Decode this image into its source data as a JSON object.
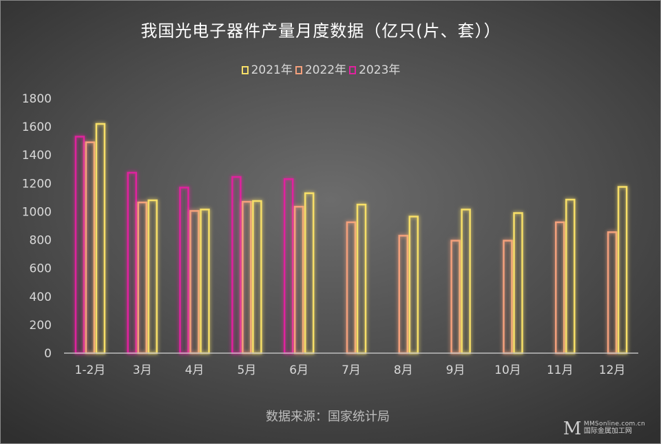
{
  "chart_data": {
    "type": "bar",
    "title": "我国光电子器件产量月度数据（亿只(片、套））",
    "categories": [
      "1-2月",
      "3月",
      "4月",
      "5月",
      "6月",
      "7月",
      "8月",
      "9月",
      "10月",
      "11月",
      "12月"
    ],
    "series": [
      {
        "name": "2023年",
        "color": "#e0229e",
        "values": [
          1530,
          1275,
          1170,
          1245,
          1230,
          null,
          null,
          null,
          null,
          null,
          null
        ]
      },
      {
        "name": "2022年",
        "color": "#f4a07c",
        "values": [
          1490,
          1065,
          1005,
          1070,
          1035,
          925,
          830,
          795,
          795,
          925,
          855
        ]
      },
      {
        "name": "2021年",
        "color": "#f7df68",
        "values": [
          1620,
          1080,
          1015,
          1075,
          1130,
          1050,
          965,
          1015,
          990,
          1085,
          1175
        ]
      }
    ],
    "legend_order": [
      "2021年",
      "2022年",
      "2023年"
    ],
    "legend_placement": "top",
    "ylim": [
      0,
      1800
    ],
    "yticks": [
      0,
      200,
      400,
      600,
      800,
      1000,
      1200,
      1400,
      1600,
      1800
    ],
    "grid": false,
    "xlabel": "",
    "ylabel": ""
  },
  "source_note": "数据来源：国家统计局",
  "watermark": {
    "logo": "M",
    "url": "MMSonline.com.cn",
    "name": "国际金属加工网"
  }
}
